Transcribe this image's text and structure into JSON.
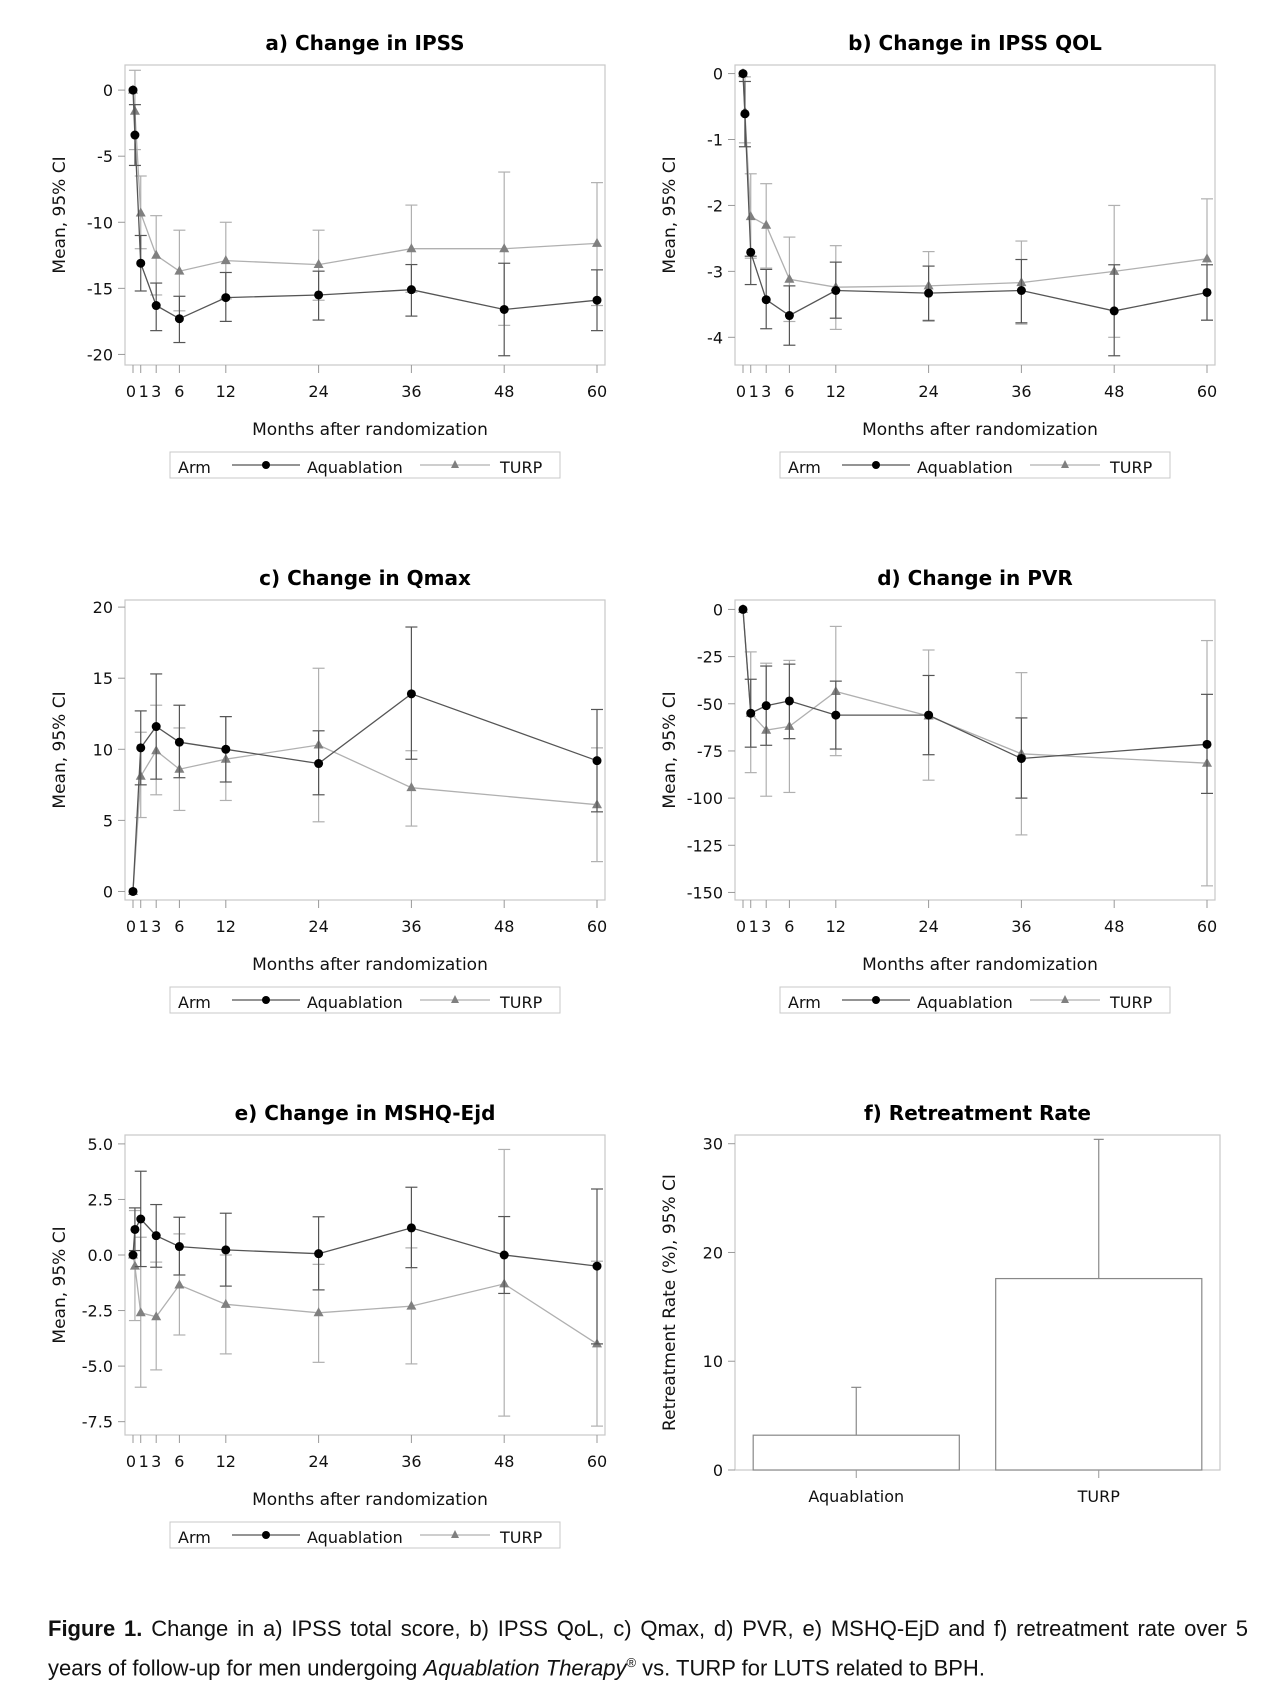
{
  "legend": {
    "title": "Arm",
    "aquablation": "Aquablation",
    "turp": "TURP"
  },
  "colors": {
    "aquablation_line": "#555555",
    "aquablation_marker": "#000000",
    "turp_line": "#b0b0b0",
    "turp_marker": "#808080",
    "frame": "#c8c8c8"
  },
  "caption": {
    "label": "Figure 1.",
    "text1": " Change in a) IPSS total score, b) IPSS QoL, c) Qmax, d) PVR, e) MSHQ-EjD and f) retreatment rate over 5 years of follow-up for men undergoing ",
    "italic": "Aquablation Therapy",
    "sup": "®",
    "text2": " vs. TURP for LUTS related to BPH."
  },
  "chart_data": [
    {
      "id": "a",
      "type": "line",
      "title": "a) Change in IPSS",
      "xlabel": "Months after randomization",
      "ylabel": "Mean, 95% CI",
      "xticks": [
        0,
        1,
        3,
        6,
        12,
        24,
        36,
        48,
        60
      ],
      "xtick_labels": [
        "0",
        "1",
        "3",
        "6",
        "12",
        "24",
        "36",
        "48",
        "60"
      ],
      "xlim": [
        0,
        60
      ],
      "ylim": [
        -20.8,
        1.9
      ],
      "yticks": [
        0,
        -5,
        -10,
        -15,
        -20
      ],
      "ytick_labels": [
        "0",
        "-5",
        "-10",
        "-15",
        "-20"
      ],
      "legend": "bottom",
      "series": [
        {
          "name": "Aquablation",
          "x": [
            0,
            0.25,
            1,
            3,
            6,
            12,
            24,
            36,
            48,
            60
          ],
          "y": [
            0,
            -3.4,
            -13.1,
            -16.3,
            -17.3,
            -15.7,
            -15.5,
            -15.1,
            -16.6,
            -15.9
          ],
          "lo": [
            0,
            -5.7,
            -15.2,
            -18.2,
            -19.1,
            -17.5,
            -17.4,
            -17.1,
            -20.1,
            -18.2
          ],
          "hi": [
            0,
            -1.1,
            -11.0,
            -14.6,
            -15.6,
            -13.8,
            -13.7,
            -13.2,
            -13.1,
            -13.6
          ]
        },
        {
          "name": "TURP",
          "x": [
            0,
            0.25,
            1,
            3,
            6,
            12,
            24,
            36,
            48,
            60
          ],
          "y": [
            0,
            -1.6,
            -9.3,
            -12.5,
            -13.7,
            -12.9,
            -13.2,
            -12.0,
            -12.0,
            -11.6
          ],
          "lo": [
            0,
            -4.5,
            -12.0,
            -15.5,
            -16.7,
            -15.8,
            -15.9,
            -15.3,
            -17.8,
            -16.3
          ],
          "hi": [
            0,
            1.5,
            -6.5,
            -9.5,
            -10.6,
            -10.0,
            -10.6,
            -8.7,
            -6.2,
            -7.0
          ]
        }
      ]
    },
    {
      "id": "b",
      "type": "line",
      "title": "b) Change in IPSS QOL",
      "xlabel": "Months after randomization",
      "ylabel": "Mean, 95% CI",
      "xticks": [
        0,
        1,
        3,
        6,
        12,
        24,
        36,
        48,
        60
      ],
      "xtick_labels": [
        "0",
        "1",
        "3",
        "6",
        "12",
        "24",
        "36",
        "48",
        "60"
      ],
      "xlim": [
        0,
        60
      ],
      "ylim": [
        -4.42,
        0.13
      ],
      "yticks": [
        0,
        -1,
        -2,
        -3,
        -4
      ],
      "ytick_labels": [
        "0",
        "-1",
        "-2",
        "-3",
        "-4"
      ],
      "legend": "bottom",
      "series": [
        {
          "name": "Aquablation",
          "x": [
            0,
            0.25,
            1,
            3,
            6,
            12,
            24,
            36,
            48,
            60
          ],
          "y": [
            0,
            -0.61,
            -2.71,
            -3.43,
            -3.67,
            -3.29,
            -3.33,
            -3.29,
            -3.6,
            -3.32
          ],
          "lo": [
            0,
            -1.11,
            -3.2,
            -3.87,
            -4.12,
            -3.71,
            -3.75,
            -3.78,
            -4.28,
            -3.74
          ],
          "hi": [
            0,
            -0.12,
            -2.77,
            -2.97,
            -3.22,
            -2.86,
            -2.92,
            -2.82,
            -2.9,
            -2.9
          ]
        },
        {
          "name": "TURP",
          "x": [
            0,
            0.25,
            1,
            3,
            6,
            12,
            24,
            36,
            48,
            60
          ],
          "y": [
            0,
            -0.58,
            -2.17,
            -2.3,
            -3.12,
            -3.24,
            -3.22,
            -3.17,
            -3.0,
            -2.81
          ],
          "lo": [
            0,
            -1.05,
            -2.8,
            -2.95,
            -3.76,
            -3.88,
            -3.74,
            -3.8,
            -4.0,
            -3.74
          ],
          "hi": [
            0,
            -0.05,
            -1.52,
            -1.67,
            -2.48,
            -2.61,
            -2.7,
            -2.54,
            -2.0,
            -1.9
          ]
        }
      ]
    },
    {
      "id": "c",
      "type": "line",
      "title": "c) Change in Qmax",
      "xlabel": "Months after randomization",
      "ylabel": "Mean, 95% CI",
      "xticks": [
        0,
        1,
        3,
        6,
        12,
        24,
        36,
        48,
        60
      ],
      "xtick_labels": [
        "0",
        "1",
        "3",
        "6",
        "12",
        "24",
        "36",
        "48",
        "60"
      ],
      "xlim": [
        0,
        60
      ],
      "ylim": [
        -0.6,
        20.5
      ],
      "yticks": [
        0,
        5,
        10,
        15,
        20
      ],
      "ytick_labels": [
        "0",
        "5",
        "10",
        "15",
        "20"
      ],
      "legend": "bottom",
      "series": [
        {
          "name": "Aquablation",
          "x": [
            0,
            1,
            3,
            6,
            12,
            24,
            36,
            60
          ],
          "y": [
            0,
            10.1,
            11.6,
            10.5,
            10.0,
            9.0,
            13.9,
            9.2
          ],
          "lo": [
            0,
            7.5,
            7.9,
            8.0,
            7.7,
            6.8,
            9.3,
            5.6
          ],
          "hi": [
            0,
            12.7,
            15.3,
            13.1,
            12.3,
            11.3,
            18.6,
            12.8
          ]
        },
        {
          "name": "TURP",
          "x": [
            0,
            1,
            3,
            6,
            12,
            24,
            36,
            60
          ],
          "y": [
            0,
            8.1,
            9.9,
            8.6,
            9.3,
            10.3,
            7.3,
            6.1
          ],
          "lo": [
            0,
            5.2,
            6.8,
            5.7,
            6.4,
            4.9,
            4.6,
            2.1
          ],
          "hi": [
            0,
            11.2,
            13.1,
            11.5,
            12.3,
            15.7,
            9.9,
            10.1
          ]
        }
      ]
    },
    {
      "id": "d",
      "type": "line",
      "title": "d) Change in PVR",
      "xlabel": "Months after randomization",
      "ylabel": "Mean, 95% CI",
      "xticks": [
        0,
        1,
        3,
        6,
        12,
        24,
        36,
        48,
        60
      ],
      "xtick_labels": [
        "0",
        "1",
        "3",
        "6",
        "12",
        "24",
        "36",
        "48",
        "60"
      ],
      "xlim": [
        0,
        60
      ],
      "ylim": [
        -154,
        5
      ],
      "yticks": [
        0,
        -25,
        -50,
        -75,
        -100,
        -125,
        -150
      ],
      "ytick_labels": [
        "0",
        "-25",
        "-50",
        "-75",
        "-100",
        "-125",
        "-150"
      ],
      "legend": "bottom",
      "series": [
        {
          "name": "Aquablation",
          "x": [
            0,
            1,
            3,
            6,
            12,
            24,
            36,
            60
          ],
          "y": [
            0,
            -55,
            -51,
            -48.5,
            -56,
            -56,
            -79,
            -71.5
          ],
          "lo": [
            0,
            -73,
            -72,
            -68.5,
            -74,
            -77,
            -100,
            -97.5
          ],
          "hi": [
            0,
            -37,
            -30,
            -29,
            -38,
            -35,
            -57.5,
            -45
          ]
        },
        {
          "name": "TURP",
          "x": [
            0,
            1,
            3,
            6,
            12,
            24,
            36,
            60
          ],
          "y": [
            0,
            -55,
            -64,
            -62,
            -43.5,
            -56.5,
            -76.5,
            -81.5
          ],
          "lo": [
            0,
            -86.5,
            -99,
            -97,
            -77.5,
            -90.5,
            -119.5,
            -146.5
          ],
          "hi": [
            0,
            -22.5,
            -28.5,
            -27,
            -9,
            -21.5,
            -33.5,
            -16.5
          ]
        }
      ]
    },
    {
      "id": "e",
      "type": "line",
      "title": "e) Change in MSHQ-Ejd",
      "xlabel": "Months after randomization",
      "ylabel": "Mean, 95% CI",
      "xticks": [
        0,
        1,
        3,
        6,
        12,
        24,
        36,
        48,
        60
      ],
      "xtick_labels": [
        "0",
        "1",
        "3",
        "6",
        "12",
        "24",
        "36",
        "48",
        "60"
      ],
      "xlim": [
        0,
        60
      ],
      "ylim": [
        -8.1,
        5.4
      ],
      "yticks": [
        5.0,
        2.5,
        0.0,
        -2.5,
        -5.0,
        -7.5
      ],
      "ytick_labels": [
        "5.0",
        "2.5",
        "0.0",
        "-2.5",
        "-5.0",
        "-7.5"
      ],
      "legend": "bottom",
      "series": [
        {
          "name": "Aquablation",
          "x": [
            0,
            0.25,
            1,
            3,
            6,
            12,
            24,
            36,
            48,
            60
          ],
          "y": [
            0,
            1.15,
            1.62,
            0.87,
            0.38,
            0.23,
            0.06,
            1.22,
            0.0,
            -0.5
          ],
          "lo": [
            0,
            0.2,
            -0.52,
            -0.55,
            -0.9,
            -1.4,
            -1.57,
            -0.57,
            -1.73,
            -4.0
          ],
          "hi": [
            0,
            2.12,
            3.77,
            2.27,
            1.7,
            1.88,
            1.72,
            3.05,
            1.73,
            2.97
          ]
        },
        {
          "name": "TURP",
          "x": [
            0,
            0.25,
            1,
            3,
            6,
            12,
            24,
            36,
            48,
            60
          ],
          "y": [
            0,
            -0.5,
            -2.6,
            -2.78,
            -1.35,
            -2.22,
            -2.6,
            -2.3,
            -1.3,
            -4.0
          ],
          "lo": [
            0,
            -2.95,
            -5.95,
            -5.17,
            -3.6,
            -4.45,
            -4.83,
            -4.9,
            -7.25,
            -7.7
          ],
          "hi": [
            0,
            2.0,
            0.8,
            -0.32,
            0.95,
            0.0,
            -0.42,
            0.32,
            4.75,
            -0.28
          ]
        }
      ]
    },
    {
      "id": "f",
      "type": "bar",
      "title": "f) Retreatment Rate",
      "xlabel": "",
      "ylabel": "Retreatment Rate (%), 95% CI",
      "categories": [
        "Aquablation",
        "TURP"
      ],
      "values": [
        3.2,
        17.6
      ],
      "ci_upper": [
        7.6,
        30.4
      ],
      "ylim": [
        0,
        30.8
      ],
      "yticks": [
        0,
        10,
        20,
        30
      ],
      "ytick_labels": [
        "0",
        "10",
        "20",
        "30"
      ]
    }
  ]
}
